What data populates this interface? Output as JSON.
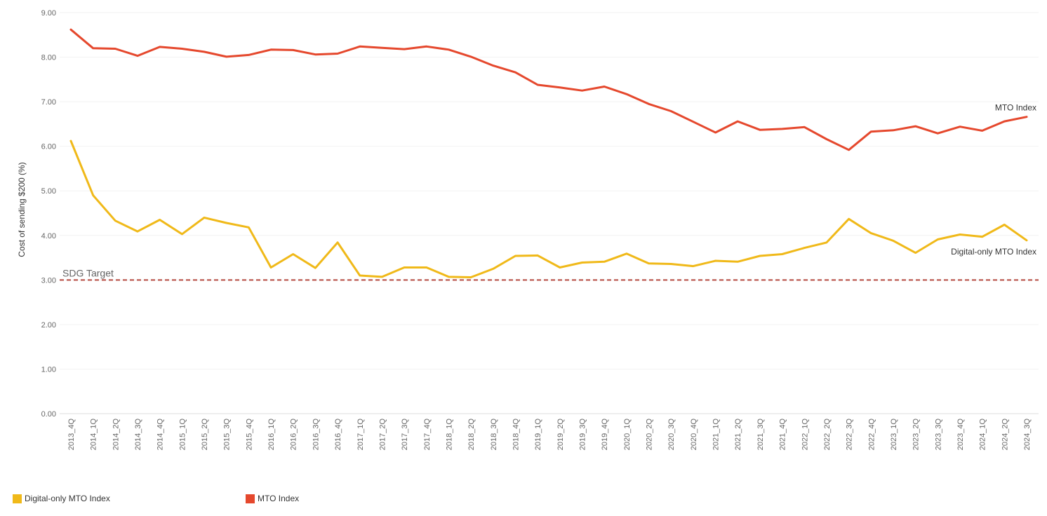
{
  "chart_data": {
    "type": "line",
    "ylabel": "Cost of sending $200 (%)",
    "ylim": [
      0,
      9
    ],
    "y_ticks": [
      "0.00",
      "1.00",
      "2.00",
      "3.00",
      "4.00",
      "5.00",
      "6.00",
      "7.00",
      "8.00",
      "9.00"
    ],
    "grid": true,
    "categories": [
      "2013_4Q",
      "2014_1Q",
      "2014_2Q",
      "2014_3Q",
      "2014_4Q",
      "2015_1Q",
      "2015_2Q",
      "2015_3Q",
      "2015_4Q",
      "2016_1Q",
      "2016_2Q",
      "2016_3Q",
      "2016_4Q",
      "2017_1Q",
      "2017_2Q",
      "2017_3Q",
      "2017_4Q",
      "2018_1Q",
      "2018_2Q",
      "2018_3Q",
      "2018_4Q",
      "2019_1Q",
      "2019_2Q",
      "2019_3Q",
      "2019_4Q",
      "2020_1Q",
      "2020_2Q",
      "2020_3Q",
      "2020_4Q",
      "2021_1Q",
      "2021_2Q",
      "2021_3Q",
      "2021_4Q",
      "2022_1Q",
      "2022_2Q",
      "2022_3Q",
      "2022_4Q",
      "2023_1Q",
      "2023_2Q",
      "2023_3Q",
      "2023_4Q",
      "2024_1Q",
      "2024_2Q",
      "2024_3Q"
    ],
    "series": [
      {
        "name": "Digital-only MTO Index",
        "color": "#f0b919",
        "values": [
          6.12,
          4.9,
          4.33,
          4.09,
          4.35,
          4.03,
          4.4,
          4.28,
          4.18,
          3.28,
          3.58,
          3.27,
          3.84,
          3.1,
          3.07,
          3.28,
          3.28,
          3.07,
          3.06,
          3.25,
          3.54,
          3.55,
          3.28,
          3.39,
          3.41,
          3.59,
          3.37,
          3.36,
          3.31,
          3.43,
          3.41,
          3.54,
          3.58,
          3.72,
          3.84,
          4.37,
          4.05,
          3.88,
          3.61,
          3.91,
          4.02,
          3.97,
          4.24,
          3.89
        ]
      },
      {
        "name": "MTO Index",
        "color": "#e5482d",
        "values": [
          8.62,
          8.2,
          8.19,
          8.03,
          8.23,
          8.19,
          8.12,
          8.01,
          8.05,
          8.17,
          8.16,
          8.06,
          8.08,
          8.24,
          8.21,
          8.18,
          8.24,
          8.17,
          8.01,
          7.81,
          7.66,
          7.38,
          7.32,
          7.25,
          7.34,
          7.17,
          6.95,
          6.79,
          6.55,
          6.31,
          6.56,
          6.37,
          6.39,
          6.43,
          6.16,
          5.92,
          6.33,
          6.36,
          6.45,
          6.29,
          6.44,
          6.35,
          6.56,
          6.66
        ]
      }
    ],
    "annotations": {
      "target_label": "SDG Target",
      "target_value": 3.0,
      "target_color": "#b5473f",
      "mto_end_label": "MTO Index",
      "digital_end_label": "Digital-only MTO Index"
    },
    "legend": {
      "placement": "bottom-left",
      "items": [
        {
          "label": "Digital-only MTO Index",
          "color": "#f0b919"
        },
        {
          "label": "MTO Index",
          "color": "#e5482d"
        }
      ]
    }
  }
}
